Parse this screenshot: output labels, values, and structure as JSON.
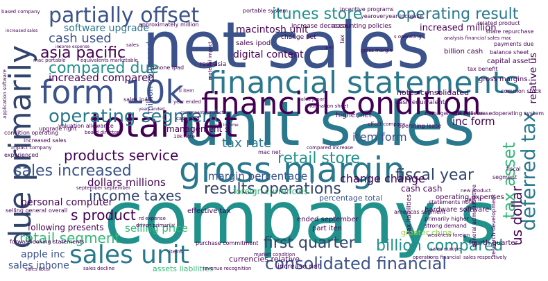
{
  "title": "",
  "palette": {
    "dark_purple": "#440154",
    "indigo": "#3b528b",
    "navy": "#31446b",
    "teal": "#2a788e",
    "sea": "#21918c",
    "mint": "#35b779",
    "lime": "#90d743",
    "yellow": "#d8e219"
  },
  "words": [
    {
      "text": "net sales",
      "color": "#3b528b"
    },
    {
      "text": "company s",
      "color": "#21918c"
    },
    {
      "text": "unit sales",
      "color": "#2a788e"
    },
    {
      "text": "financial statements",
      "color": "#2a788e"
    },
    {
      "text": "financial condition",
      "color": "#440154"
    },
    {
      "text": "total net",
      "color": "#440154"
    },
    {
      "text": "gross margin",
      "color": "#2a788e"
    },
    {
      "text": "form 10k",
      "color": "#3b528b"
    },
    {
      "text": "due primarily",
      "color": "#31446b"
    },
    {
      "text": "sales unit",
      "color": "#2a788e"
    },
    {
      "text": "partially offset",
      "color": "#3b528b"
    },
    {
      "text": "operating result",
      "color": "#2a788e"
    },
    {
      "text": "operating segment",
      "color": "#2a788e"
    },
    {
      "text": "consolidated financial",
      "color": "#3b528b"
    },
    {
      "text": "results operations",
      "color": "#31446b"
    },
    {
      "text": "deferred tax",
      "color": "#2a788e"
    },
    {
      "text": "tax asset",
      "color": "#35b779"
    },
    {
      "text": "billion compared",
      "color": "#21918c"
    },
    {
      "text": "compared due",
      "color": "#21918c"
    },
    {
      "text": "itunes store",
      "color": "#21918c"
    },
    {
      "text": "retail store",
      "color": "#21918c"
    },
    {
      "text": "fiscal year",
      "color": "#31446b"
    },
    {
      "text": "first quarter",
      "color": "#31446b"
    },
    {
      "text": "sales increased",
      "color": "#3b528b"
    },
    {
      "text": "products service",
      "color": "#440154"
    },
    {
      "text": "income taxes",
      "color": "#31446b"
    },
    {
      "text": "retail segment",
      "color": "#35b779"
    },
    {
      "text": "asia pacific",
      "color": "#440154"
    },
    {
      "text": "cash used",
      "color": "#3b528b"
    },
    {
      "text": "increased compared",
      "color": "#440154"
    },
    {
      "text": "s product",
      "color": "#440154"
    },
    {
      "text": "tax rate",
      "color": "#2a788e"
    },
    {
      "text": "software upgrade",
      "color": "#2a788e"
    },
    {
      "text": "us dollar",
      "color": "#440154"
    },
    {
      "text": "macintosh unit",
      "color": "#440154"
    },
    {
      "text": "digital content",
      "color": "#440154"
    },
    {
      "text": "margin percentage",
      "color": "#3b528b"
    },
    {
      "text": "change change",
      "color": "#440154"
    },
    {
      "text": "item form",
      "color": "#3b528b"
    },
    {
      "text": "inc form",
      "color": "#440154"
    },
    {
      "text": "dollars millions",
      "color": "#440154"
    },
    {
      "text": "personal computer",
      "color": "#440154"
    },
    {
      "text": "apple inc",
      "color": "#3b528b"
    },
    {
      "text": "sales iphone",
      "color": "#3b528b"
    },
    {
      "text": "selling price",
      "color": "#35b779"
    },
    {
      "text": "following presents",
      "color": "#440154"
    },
    {
      "text": "management s",
      "color": "#440154"
    },
    {
      "text": "increased million",
      "color": "#440154"
    },
    {
      "text": "relative us",
      "color": "#440154"
    },
    {
      "text": "cash cash",
      "color": "#440154"
    },
    {
      "text": "percentage total",
      "color": "#3b528b"
    },
    {
      "text": "foreign currencies",
      "color": "#35b779"
    },
    {
      "text": "currencies relative",
      "color": "#440154"
    },
    {
      "text": "greater china",
      "color": "#90d743"
    },
    {
      "text": "assets liabilities",
      "color": "#35b779"
    },
    {
      "text": "increase net",
      "color": "#440154"
    },
    {
      "text": "sales ipod",
      "color": "#440154"
    },
    {
      "text": "notes consolidated",
      "color": "#440154"
    },
    {
      "text": "higher net",
      "color": "#440154"
    },
    {
      "text": "million compared",
      "color": "#3b528b"
    },
    {
      "text": "billion cash",
      "color": "#440154"
    },
    {
      "text": "capital asset",
      "color": "#440154"
    },
    {
      "text": "operating expenses",
      "color": "#440154"
    },
    {
      "text": "gross margins",
      "color": "#440154"
    },
    {
      "text": "hardware software",
      "color": "#440154"
    },
    {
      "text": "fourth quarter",
      "color": "#440154"
    },
    {
      "text": "tax liabilities",
      "color": "#440154"
    },
    {
      "text": "effective tax",
      "color": "#440154"
    },
    {
      "text": "ended september",
      "color": "#440154"
    },
    {
      "text": "part iten",
      "color": "#440154"
    },
    {
      "text": "change net",
      "color": "#440154"
    },
    {
      "text": "rest asia",
      "color": "#440154"
    },
    {
      "text": "iphone ipad",
      "color": "#440154"
    },
    {
      "text": "sales ipad",
      "color": "#440154"
    },
    {
      "text": "increase decrease",
      "color": "#440154"
    },
    {
      "text": "accounting policies",
      "color": "#440154"
    },
    {
      "text": "incentive programs",
      "color": "#440154"
    },
    {
      "text": "yearoveryear increase",
      "color": "#440154"
    },
    {
      "text": "portable system",
      "color": "#440154"
    },
    {
      "text": "approximately million",
      "color": "#440154"
    },
    {
      "text": "related product",
      "color": "#440154"
    },
    {
      "text": "share repurchase",
      "color": "#440154"
    },
    {
      "text": "payments due",
      "color": "#440154"
    },
    {
      "text": "balance sheet",
      "color": "#440154"
    },
    {
      "text": "tax benefit",
      "color": "#440154"
    },
    {
      "text": "common stock",
      "color": "#440154"
    },
    {
      "text": "operating system",
      "color": "#440154"
    },
    {
      "text": "management believe",
      "color": "#440154"
    },
    {
      "text": "sales decreased",
      "color": "#440154"
    },
    {
      "text": "cash equivalent",
      "color": "#440154"
    },
    {
      "text": "primarily higher",
      "color": "#440154"
    },
    {
      "text": "strong demand",
      "color": "#440154"
    },
    {
      "text": "general administrative",
      "color": "#440154"
    },
    {
      "text": "research development",
      "color": "#440154"
    },
    {
      "text": "americas segment",
      "color": "#440154"
    },
    {
      "text": "statements note",
      "color": "#440154"
    },
    {
      "text": "purchase commitment",
      "color": "#440154"
    },
    {
      "text": "valuation allowance",
      "color": "#440154"
    },
    {
      "text": "september september",
      "color": "#440154"
    },
    {
      "text": "selling general",
      "color": "#440154"
    },
    {
      "text": "condition operating",
      "color": "#440154"
    },
    {
      "text": "upgrade right",
      "color": "#440154"
    },
    {
      "text": "board directors",
      "color": "#440154"
    },
    {
      "text": "increased sales",
      "color": "#440154"
    },
    {
      "text": "cash paid",
      "color": "#440154"
    },
    {
      "text": "mac net",
      "color": "#440154"
    },
    {
      "text": "compared increase",
      "color": "#440154"
    },
    {
      "text": "operating lease",
      "color": "#440154"
    },
    {
      "text": "new product",
      "color": "#440154"
    },
    {
      "text": "part ii",
      "color": "#440154"
    },
    {
      "text": "overall",
      "color": "#440154"
    },
    {
      "text": "experienced",
      "color": "#440154"
    },
    {
      "text": "fiscal",
      "color": "#440154"
    },
    {
      "text": "segment",
      "color": "#440154"
    },
    {
      "text": "sales japan",
      "color": "#440154"
    },
    {
      "text": "sales europe",
      "color": "#440154"
    },
    {
      "text": "operations financial",
      "color": "#440154"
    },
    {
      "text": "sales respectively",
      "color": "#440154"
    },
    {
      "text": "revenue recognition",
      "color": "#440154"
    },
    {
      "text": "market condition",
      "color": "#440154"
    },
    {
      "text": "items",
      "color": "#440154"
    },
    {
      "text": "forwardlooking statements",
      "color": "#440154"
    },
    {
      "text": "sales total",
      "color": "#440154"
    },
    {
      "text": "sales decline",
      "color": "#440154"
    },
    {
      "text": "weakness foreign",
      "color": "#440154"
    },
    {
      "text": "rd expense",
      "color": "#440154"
    },
    {
      "text": "driven primarily",
      "color": "#440154"
    },
    {
      "text": "impact company",
      "color": "#440154"
    },
    {
      "text": "information sheet",
      "color": "#440154"
    },
    {
      "text": "based company",
      "color": "#440154"
    },
    {
      "text": "increased sales",
      "color": "#440154"
    },
    {
      "text": "income expense",
      "color": "#440154"
    },
    {
      "text": "mac portable",
      "color": "#440154"
    },
    {
      "text": "equivalents marketable",
      "color": "#440154"
    },
    {
      "text": "year ended",
      "color": "#440154"
    },
    {
      "text": "analysis financial sales mac",
      "color": "#440154"
    },
    {
      "text": "effect company",
      "color": "#440154"
    },
    {
      "text": "years ended",
      "color": "#440154"
    },
    {
      "text": "net income",
      "color": "#440154"
    },
    {
      "text": "application software",
      "color": "#440154"
    },
    {
      "text": "components product",
      "color": "#440154"
    },
    {
      "text": "10k note",
      "color": "#440154"
    },
    {
      "text": "ipad",
      "color": "#440154"
    },
    {
      "text": "material impact",
      "color": "#440154"
    },
    {
      "text": "gross margin",
      "color": "#440154"
    },
    {
      "text": "sales",
      "color": "#440154"
    },
    {
      "text": "ii item",
      "color": "#440154"
    },
    {
      "text": "s operating",
      "color": "#440154"
    },
    {
      "text": "tax",
      "color": "#440154"
    },
    {
      "text": "mac",
      "color": "#440154"
    }
  ]
}
